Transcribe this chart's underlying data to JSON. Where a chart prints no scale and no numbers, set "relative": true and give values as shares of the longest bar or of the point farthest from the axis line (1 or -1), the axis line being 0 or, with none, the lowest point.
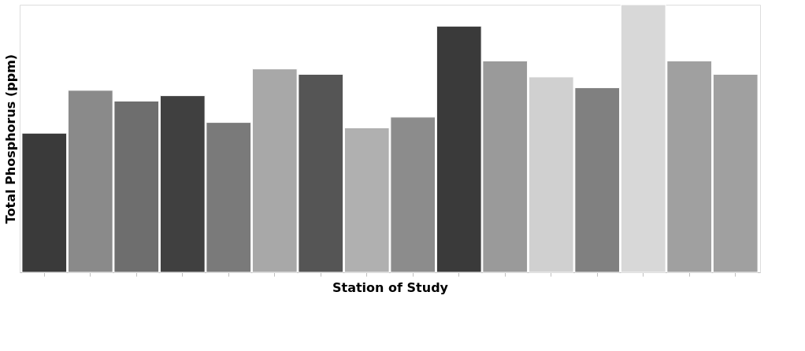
{
  "chart_data": {
    "type": "bar",
    "relative": true,
    "xlabel": "Station of Study",
    "ylabel": "Total Phosphorus (ppm)",
    "categories": [
      null,
      null,
      null,
      null,
      null,
      null,
      null,
      null,
      null,
      null,
      null,
      null,
      null,
      null,
      null,
      null
    ],
    "values": [
      0.52,
      0.68,
      0.64,
      0.66,
      0.56,
      0.76,
      0.74,
      0.54,
      0.58,
      0.92,
      0.79,
      0.73,
      0.69,
      1,
      0.79,
      0.74
    ],
    "colors": [
      "#3a3a3a",
      "#8a8a8a",
      "#6e6e6e",
      "#404040",
      "#7a7a7a",
      "#a8a8a8",
      "#555555",
      "#b0b0b0",
      "#8c8c8c",
      "#3a3a3a",
      "#9a9a9a",
      "#d0d0d0",
      "#808080",
      "#d8d8d8",
      "#a0a0a0",
      "#a0a0a0"
    ],
    "grid": false
  }
}
